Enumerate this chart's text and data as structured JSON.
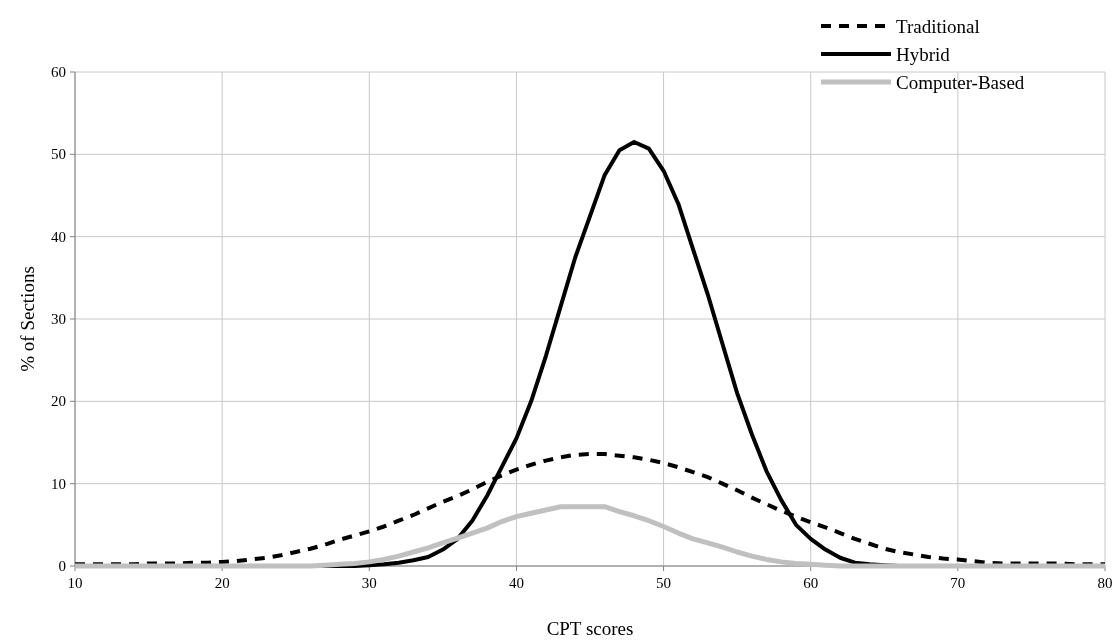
{
  "chart_data": {
    "type": "line",
    "xlabel": "CPT scores",
    "ylabel": "% of Sections",
    "x": [
      10,
      11,
      12,
      13,
      14,
      15,
      16,
      17,
      18,
      19,
      20,
      21,
      22,
      23,
      24,
      25,
      26,
      27,
      28,
      29,
      30,
      31,
      32,
      33,
      34,
      35,
      36,
      37,
      38,
      39,
      40,
      41,
      42,
      43,
      44,
      45,
      46,
      47,
      48,
      49,
      50,
      51,
      52,
      53,
      54,
      55,
      56,
      57,
      58,
      59,
      60,
      61,
      62,
      63,
      64,
      65,
      66,
      67,
      68,
      69,
      70,
      71,
      72,
      73,
      74,
      75,
      76,
      77,
      78,
      79,
      80
    ],
    "series": [
      {
        "name": "Traditional",
        "color": "#000000",
        "line_style": "dashed",
        "values": [
          0.2,
          0.2,
          0.2,
          0.2,
          0.2,
          0.3,
          0.3,
          0.3,
          0.4,
          0.4,
          0.5,
          0.6,
          0.8,
          1,
          1.3,
          1.7,
          2.1,
          2.6,
          3.2,
          3.7,
          4.2,
          4.8,
          5.5,
          6.2,
          7,
          7.8,
          8.5,
          9.3,
          10.2,
          11,
          11.7,
          12.3,
          12.8,
          13.2,
          13.5,
          13.6,
          13.6,
          13.4,
          13.2,
          12.9,
          12.5,
          12,
          11.4,
          10.8,
          10,
          9.2,
          8.3,
          7.5,
          6.7,
          6,
          5.3,
          4.7,
          4,
          3.3,
          2.7,
          2.1,
          1.7,
          1.4,
          1.1,
          0.9,
          0.8,
          0.6,
          0.4,
          0.3,
          0.3,
          0.3,
          0.3,
          0.3,
          0.2,
          0.2,
          0.2
        ]
      },
      {
        "name": "Hybrid",
        "color": "#000000",
        "line_style": "solid",
        "values": [
          0,
          0,
          0,
          0,
          0,
          0,
          0,
          0,
          0,
          0,
          0,
          0,
          0,
          0,
          0,
          0,
          0,
          0,
          0,
          0,
          0.1,
          0.2,
          0.4,
          0.7,
          1.1,
          2,
          3.3,
          5.5,
          8.5,
          12,
          15.5,
          20,
          25.5,
          31.5,
          37.5,
          42.5,
          47.5,
          50.5,
          51.5,
          50.7,
          48,
          44,
          38.5,
          33,
          27,
          21,
          16,
          11.5,
          8,
          5,
          3.3,
          2,
          1,
          0.4,
          0.2,
          0.1,
          0,
          0,
          0,
          0,
          0,
          0,
          0,
          0,
          0,
          0,
          0,
          0,
          0,
          0,
          0
        ]
      },
      {
        "name": "Computer-Based",
        "color": "#c0c0c0",
        "line_style": "solid",
        "values": [
          0,
          0,
          0,
          0,
          0,
          0,
          0,
          0,
          0,
          0,
          0,
          0,
          0,
          0,
          0,
          0,
          0,
          0.1,
          0.2,
          0.3,
          0.5,
          0.8,
          1.2,
          1.7,
          2.2,
          2.8,
          3.4,
          4,
          4.6,
          5.4,
          6,
          6.4,
          6.8,
          7.2,
          7.2,
          7.2,
          7.2,
          6.6,
          6.1,
          5.5,
          4.8,
          4,
          3.3,
          2.8,
          2.3,
          1.7,
          1.2,
          0.8,
          0.5,
          0.3,
          0.2,
          0.1,
          0,
          0,
          0,
          0,
          0,
          0,
          0,
          0,
          0,
          0,
          0,
          0,
          0,
          0,
          0,
          0,
          0,
          0,
          0
        ]
      }
    ],
    "xlim": [
      10,
      80
    ],
    "xticks": [
      10,
      20,
      30,
      40,
      50,
      60,
      70,
      80
    ],
    "ylim": [
      0,
      60
    ],
    "yticks": [
      0,
      10,
      20,
      30,
      40,
      50,
      60
    ],
    "grid": true,
    "legend": "top right"
  }
}
